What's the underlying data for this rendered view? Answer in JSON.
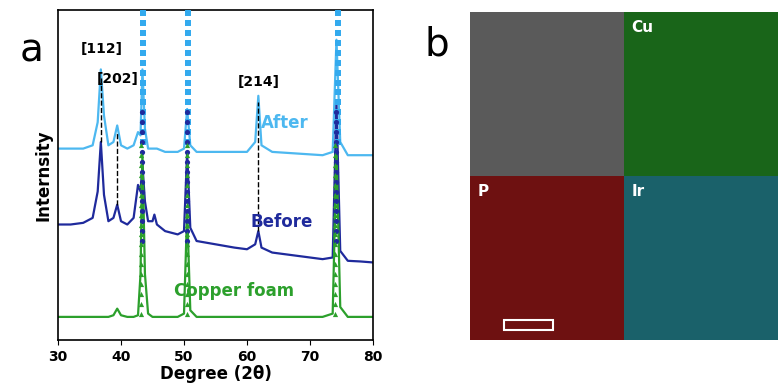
{
  "chart_data": {
    "type": "line",
    "panel_label": "a",
    "xlabel": "Degree (2θ)",
    "ylabel": "Internsity",
    "xlim": [
      30,
      80
    ],
    "ylim": [
      0,
      100
    ],
    "xticks": [
      30,
      40,
      50,
      60,
      70,
      80
    ],
    "tick_labels": "x",
    "x": [
      30,
      32,
      34,
      35.5,
      36.3,
      36.8,
      37.3,
      38,
      38.8,
      39.4,
      40,
      41,
      42,
      42.7,
      43.1,
      43.4,
      43.8,
      44.3,
      45,
      45.3,
      45.7,
      47,
      49,
      50,
      50.5,
      51,
      52,
      55,
      58,
      60,
      61.3,
      61.8,
      62.3,
      64,
      68,
      72,
      73.6,
      74.2,
      74.8,
      76,
      78,
      80
    ],
    "series": [
      {
        "name": "After",
        "color": "#4db8f0",
        "type": "line",
        "line_style": "solid",
        "label_at": [
          66,
          63
        ],
        "values": [
          58,
          58,
          58,
          59,
          66,
          82,
          68,
          59,
          60,
          65,
          59,
          58,
          59,
          63,
          62,
          82,
          64,
          58,
          58,
          58,
          58,
          57,
          57,
          58,
          70,
          59,
          57,
          57,
          57,
          57,
          60,
          74,
          59,
          57,
          56.5,
          56,
          57,
          91,
          60,
          56,
          56,
          56
        ]
      },
      {
        "name": "Before",
        "color": "#1f2a9c",
        "type": "line",
        "line_style": "solid",
        "label_at": [
          65.5,
          33
        ],
        "values": [
          35,
          35,
          35.5,
          37,
          45,
          60,
          44,
          36,
          37,
          41,
          36,
          35,
          37,
          47,
          45,
          53,
          42,
          36,
          36,
          38,
          35,
          33,
          32,
          33,
          57,
          34,
          30,
          29,
          28,
          27.5,
          29,
          33,
          28,
          26.5,
          25.5,
          24.5,
          25,
          72,
          27,
          24,
          23.8,
          23.5
        ]
      },
      {
        "name": "Copper foam",
        "color": "#2ca02c",
        "type": "line",
        "line_style": "solid",
        "label_at": [
          58,
          12
        ],
        "values": [
          7,
          7,
          7,
          7,
          7,
          7,
          7,
          7,
          7.5,
          9.5,
          7.5,
          7,
          7,
          7.5,
          20,
          57,
          20,
          8,
          7,
          7,
          7,
          7,
          7,
          8,
          39,
          9,
          7,
          7,
          7,
          7,
          7,
          7,
          7,
          7,
          7,
          7,
          8,
          57,
          10,
          7,
          7,
          7
        ]
      },
      {
        "type": "scatter",
        "marker": "square",
        "color": "#33aaee",
        "x": [
          43.5,
          43.5,
          43.5,
          43.5,
          43.5,
          43.5,
          43.5,
          43.5,
          43.5,
          43.5,
          43.5,
          43.5,
          43.5,
          43.5,
          50.7,
          50.7,
          50.7,
          50.7,
          50.7,
          50.7,
          50.7,
          50.7,
          50.7,
          50.7,
          50.7,
          50.7,
          50.7,
          50.7,
          74.4,
          74.4,
          74.4,
          74.4,
          74.4,
          74.4,
          74.4,
          74.4,
          74.4,
          74.4,
          74.4,
          74.4,
          74.4,
          74.4
        ],
        "values": [
          60,
          63,
          66,
          69,
          72,
          75,
          78,
          81,
          84,
          87,
          90,
          93,
          96,
          99,
          60,
          63,
          66,
          69,
          72,
          75,
          78,
          81,
          84,
          87,
          90,
          93,
          96,
          99,
          60,
          63,
          66,
          69,
          72,
          75,
          78,
          81,
          84,
          87,
          90,
          93,
          96,
          99
        ]
      },
      {
        "type": "scatter",
        "marker": "circle",
        "color": "#1f2a9c",
        "x": [
          43.3,
          43.3,
          43.3,
          43.3,
          43.3,
          43.3,
          43.3,
          43.3,
          43.3,
          43.3,
          43.3,
          43.3,
          43.3,
          43.3,
          50.5,
          50.5,
          50.5,
          50.5,
          50.5,
          50.5,
          50.5,
          50.5,
          50.5,
          50.5,
          50.5,
          50.5,
          50.5,
          50.5,
          74.2,
          74.2,
          74.2,
          74.2,
          74.2,
          74.2,
          74.2,
          74.2,
          74.2,
          74.2,
          74.2,
          74.2,
          74.2,
          74.2
        ],
        "values": [
          30,
          33,
          36,
          39,
          42,
          45,
          48,
          51,
          54,
          57,
          60,
          63,
          66,
          69,
          30,
          33,
          36,
          39,
          42,
          45,
          48,
          51,
          54,
          57,
          60,
          63,
          66,
          69,
          30,
          33,
          36,
          39,
          42,
          45,
          48,
          51,
          54,
          57,
          60,
          63,
          66,
          69
        ]
      },
      {
        "type": "scatter",
        "marker": "triangle",
        "color": "#2ca02c",
        "x": [
          43.2,
          43.2,
          43.2,
          43.2,
          43.2,
          43.2,
          43.2,
          43.2,
          43.2,
          43.2,
          43.2,
          43.2,
          43.2,
          43.2,
          43.2,
          43.2,
          43.2,
          43.2,
          50.4,
          50.4,
          50.4,
          50.4,
          50.4,
          50.4,
          50.4,
          50.4,
          50.4,
          50.4,
          50.4,
          50.4,
          50.4,
          50.4,
          50.4,
          50.4,
          50.4,
          50.4,
          74.0,
          74.0,
          74.0,
          74.0,
          74.0,
          74.0,
          74.0,
          74.0,
          74.0,
          74.0,
          74.0,
          74.0,
          74.0,
          74.0,
          74.0,
          74.0,
          74.0,
          74.0
        ],
        "values": [
          8,
          11,
          14,
          17,
          20,
          23,
          26,
          29,
          32,
          35,
          38,
          41,
          44,
          47,
          50,
          53,
          56,
          59,
          8,
          11,
          14,
          17,
          20,
          23,
          26,
          29,
          32,
          35,
          38,
          41,
          44,
          47,
          50,
          53,
          56,
          59,
          8,
          11,
          14,
          17,
          20,
          23,
          26,
          29,
          32,
          35,
          38,
          41,
          44,
          47,
          50,
          53,
          56,
          59
        ]
      }
    ],
    "reference_lines": [
      {
        "x": 36.9,
        "y": [
          60,
          80
        ],
        "line_style": "dashed",
        "color": "#000000"
      },
      {
        "x": 39.4,
        "y": [
          41,
          63
        ],
        "line_style": "dashed",
        "color": "#000000"
      },
      {
        "x": 61.8,
        "y": [
          33,
          72
        ],
        "line_style": "dashed",
        "color": "#000000"
      }
    ],
    "annotations": [
      {
        "text": "[112]",
        "x": 36.9,
        "y": 86
      },
      {
        "text": "[202]",
        "x": 39.4,
        "y": 77
      },
      {
        "text": "[214]",
        "x": 61.8,
        "y": 76
      }
    ]
  },
  "image_panel": {
    "label": "b",
    "maps": [
      {
        "label": "Cu",
        "color": "#2db82d"
      },
      {
        "label": "P",
        "color": "#c81e1e"
      },
      {
        "label": "Ir",
        "color": "#30b0c0"
      }
    ]
  }
}
